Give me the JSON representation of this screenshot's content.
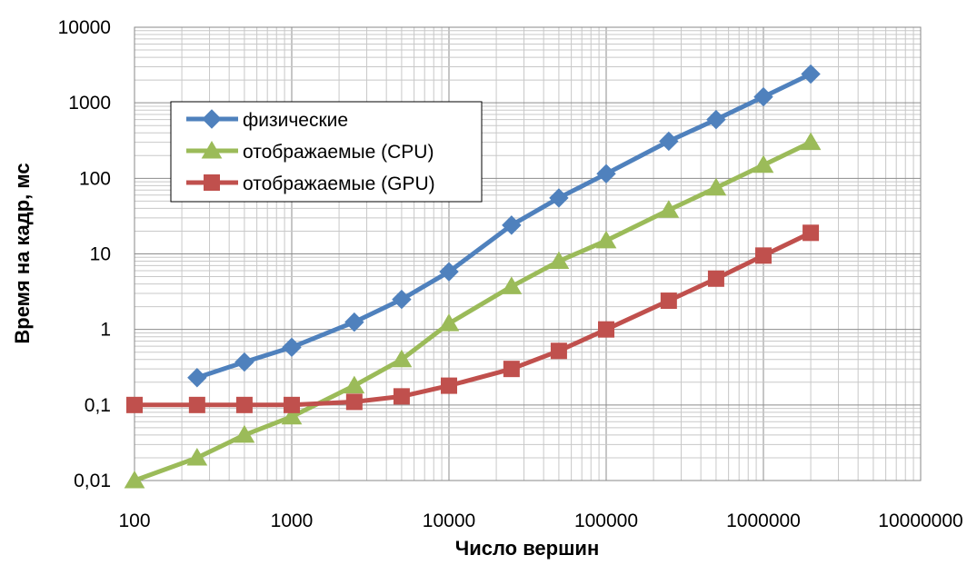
{
  "chart_data": {
    "type": "line",
    "title": "",
    "xlabel": "Число вершин",
    "ylabel": "Время на кадр, мс",
    "x_scale": "log",
    "y_scale": "log",
    "xlim": [
      100,
      10000000
    ],
    "ylim": [
      0.01,
      10000
    ],
    "x_ticks": [
      "100",
      "1000",
      "10000",
      "100000",
      "1000000",
      "10000000"
    ],
    "y_ticks": [
      "0,01",
      "0,1",
      "1",
      "10",
      "100",
      "1000",
      "10000"
    ],
    "grid": true,
    "legend_position": "top-left",
    "series": [
      {
        "name": "физические",
        "color": "#4f81bd",
        "marker": "diamond",
        "x": [
          250,
          500,
          1000,
          2500,
          5000,
          10000,
          25000,
          50000,
          100000,
          250000,
          500000,
          1000000,
          2000000
        ],
        "y": [
          0.23,
          0.37,
          0.58,
          1.25,
          2.5,
          5.8,
          24,
          55,
          115,
          310,
          600,
          1200,
          2400
        ]
      },
      {
        "name": "отображаемые (CPU)",
        "color": "#9bbb59",
        "marker": "triangle",
        "x": [
          100,
          250,
          500,
          1000,
          2500,
          5000,
          10000,
          25000,
          50000,
          100000,
          250000,
          500000,
          1000000,
          2000000
        ],
        "y": [
          0.01,
          0.02,
          0.04,
          0.07,
          0.18,
          0.4,
          1.2,
          3.7,
          8,
          15,
          38,
          75,
          150,
          300
        ]
      },
      {
        "name": "отображаемые (GPU)",
        "color": "#c0504d",
        "marker": "square",
        "x": [
          100,
          250,
          500,
          1000,
          2500,
          5000,
          10000,
          25000,
          50000,
          100000,
          250000,
          500000,
          1000000,
          2000000
        ],
        "y": [
          0.1,
          0.1,
          0.1,
          0.1,
          0.11,
          0.13,
          0.18,
          0.3,
          0.52,
          1.0,
          2.4,
          4.7,
          9.5,
          19
        ]
      }
    ]
  }
}
